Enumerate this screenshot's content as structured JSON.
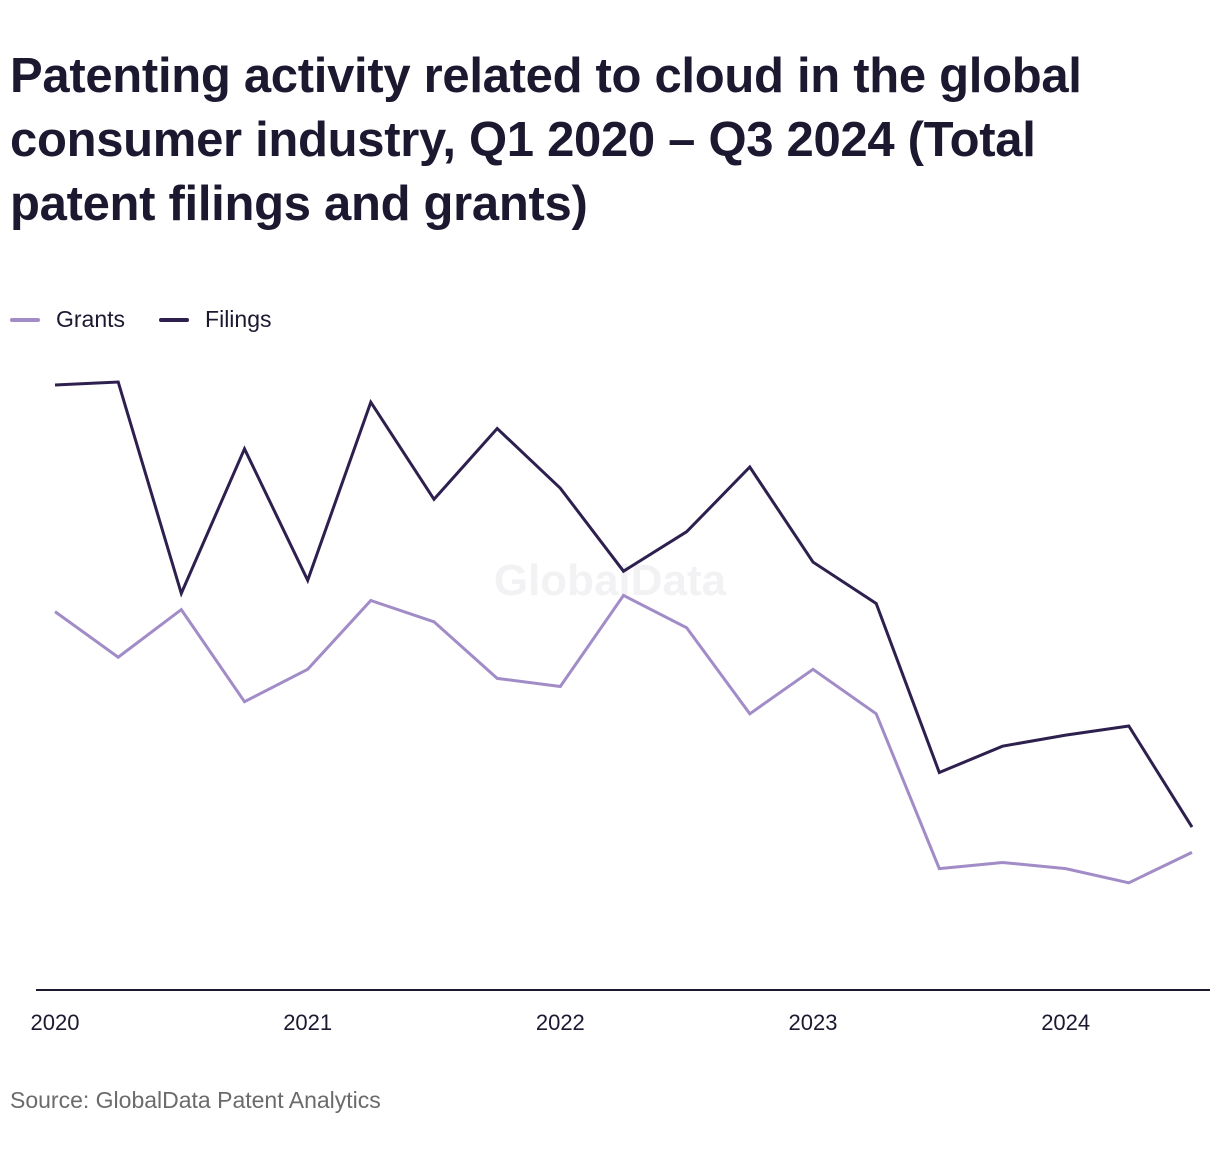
{
  "title": "Patenting activity related to cloud in the global consumer industry, Q1 2020 – Q3 2024 (Total patent filings and grants)",
  "source": "Source: GlobalData Patent Analytics",
  "watermark": "GlobalData",
  "colors": {
    "grants": "#a18cc7",
    "filings": "#2d1f4e",
    "axis": "#1c1830",
    "text": "#1c1830",
    "source": "#6b6b6b"
  },
  "legend": {
    "placement": "top-left",
    "items": [
      {
        "label": "Grants",
        "series": "grants"
      },
      {
        "label": "Filings",
        "series": "filings"
      }
    ]
  },
  "chart_data": {
    "type": "line",
    "title": "Patenting activity related to cloud in the global consumer industry, Q1 2020 – Q3 2024 (Total patent filings and grants)",
    "xlabel": "",
    "ylabel": "",
    "grid": false,
    "y_axis_visible": false,
    "x": [
      "Q1 2020",
      "Q2 2020",
      "Q3 2020",
      "Q4 2020",
      "Q1 2021",
      "Q2 2021",
      "Q3 2021",
      "Q4 2021",
      "Q1 2022",
      "Q2 2022",
      "Q3 2022",
      "Q4 2022",
      "Q1 2023",
      "Q2 2023",
      "Q3 2023",
      "Q4 2023",
      "Q1 2024",
      "Q2 2024",
      "Q3 2024"
    ],
    "x_ticks": [
      "2020",
      "2021",
      "2022",
      "2023",
      "2024"
    ],
    "ylim": [
      0,
      600
    ],
    "series": [
      {
        "key": "filings",
        "name": "Filings",
        "values": [
          598,
          601,
          392,
          535,
          405,
          581,
          485,
          555,
          496,
          414,
          453,
          517,
          423,
          382,
          215,
          241,
          252,
          261,
          161
        ]
      },
      {
        "key": "grants",
        "name": "Grants",
        "values": [
          374,
          329,
          376,
          285,
          317,
          385,
          364,
          308,
          300,
          390,
          358,
          273,
          317,
          273,
          120,
          126,
          120,
          106,
          136
        ]
      }
    ]
  }
}
